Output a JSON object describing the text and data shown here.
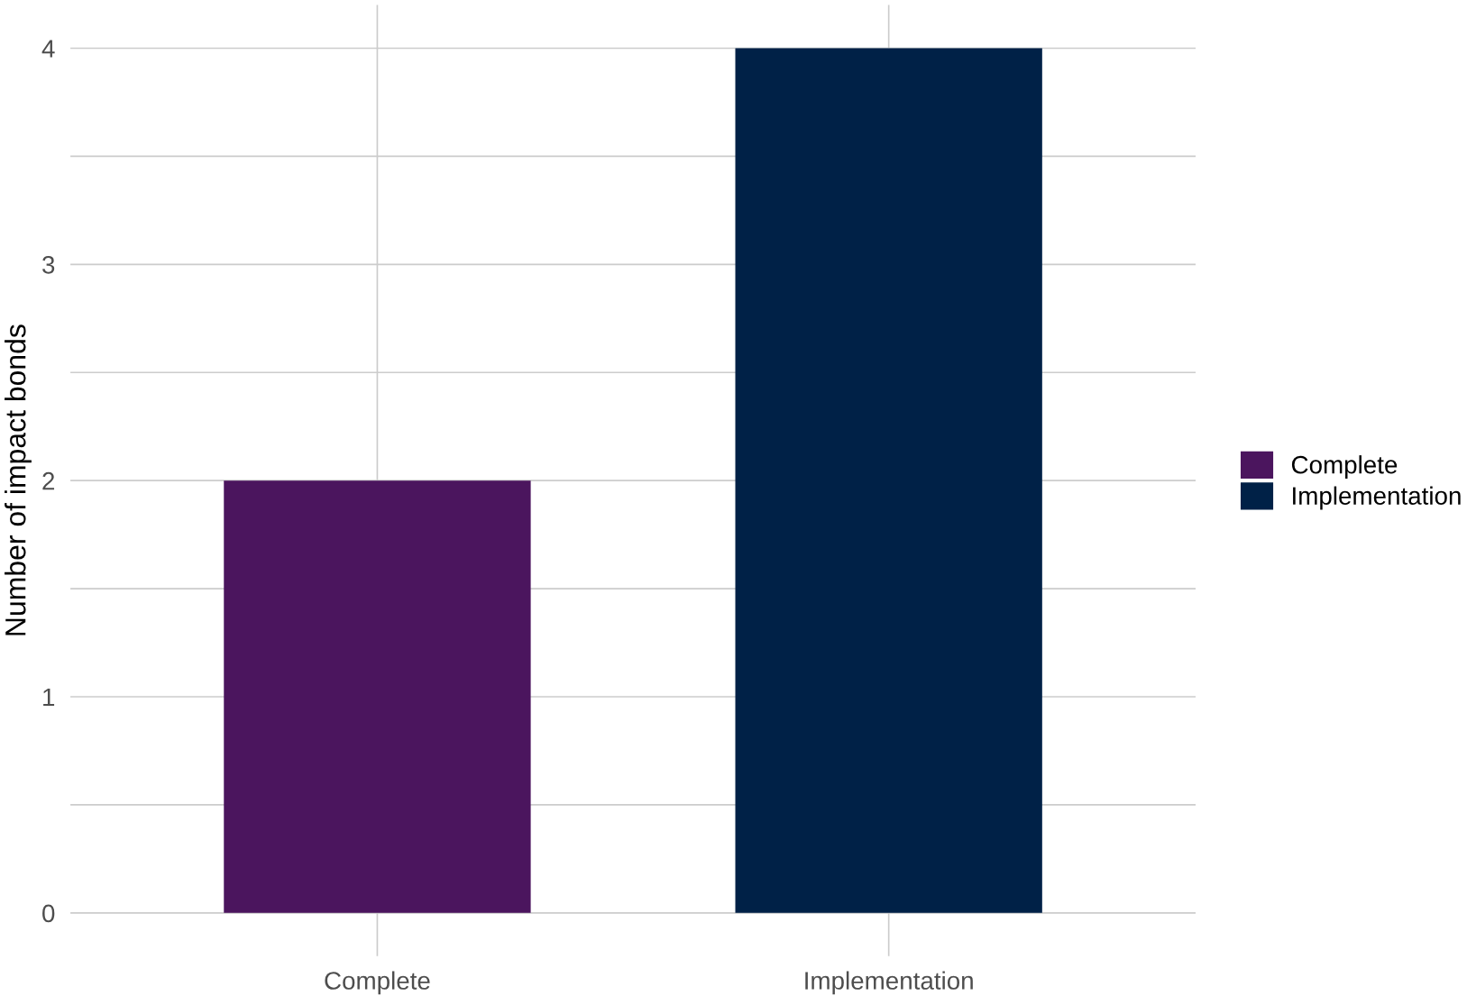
{
  "chart_data": {
    "type": "bar",
    "ylabel": "Number of impact bonds",
    "categories": [
      "Complete",
      "Implementation"
    ],
    "series": [
      {
        "name": "Complete",
        "color": "#4b155e",
        "values": [
          2,
          null
        ]
      },
      {
        "name": "Implementation",
        "color": "#002147",
        "values": [
          null,
          4
        ]
      }
    ],
    "ylim": [
      -0.2,
      4.2
    ],
    "yticks": [
      0,
      {
        "value": 0.5,
        "label": null
      },
      1,
      {
        "value": 1.5,
        "label": null
      },
      2,
      {
        "value": 2.5,
        "label": null
      },
      3,
      {
        "value": 3.5,
        "label": null
      },
      4
    ],
    "grid": true,
    "legend": "right"
  }
}
